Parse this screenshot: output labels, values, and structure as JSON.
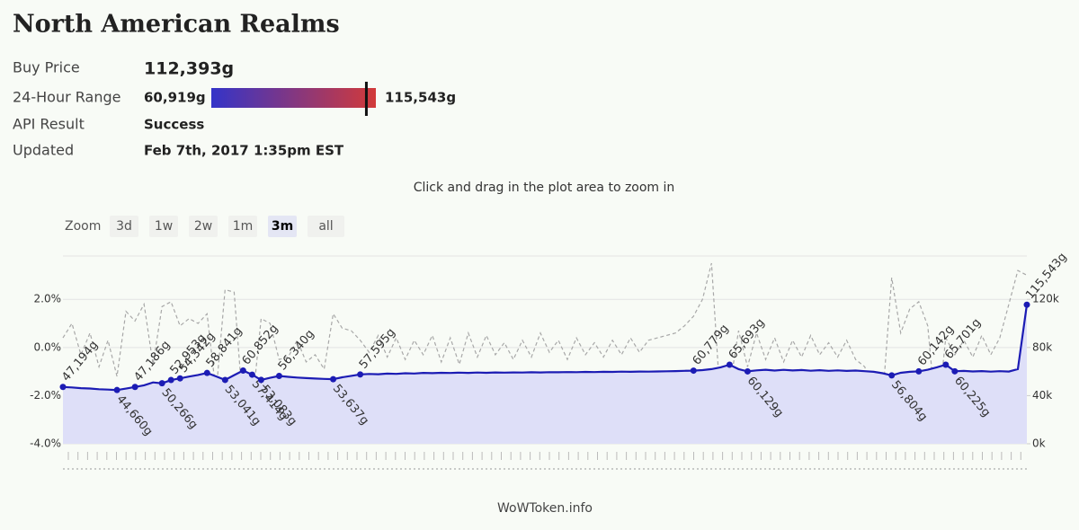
{
  "header": {
    "title": "North American Realms",
    "rows": [
      {
        "label": "Buy Price",
        "value": {
          "value": 112393,
          "label": "112,393g"
        }
      },
      {
        "label": "24-Hour Range",
        "low": {
          "value": 60919,
          "label": "60,919g"
        },
        "high": {
          "value": 115543,
          "label": "115,543g"
        }
      },
      {
        "label": "API Result",
        "text": "Success"
      },
      {
        "label": "Updated",
        "text": "Feb 7th, 2017 1:35pm EST"
      }
    ]
  },
  "zoom": {
    "label": "Zoom",
    "buttons": [
      "3d",
      "1w",
      "2w",
      "1m",
      "3m",
      "all"
    ],
    "selected": 4
  },
  "chart_data": {
    "type": "line",
    "subtitle": "Click and drag in the plot area to zoom in",
    "credits": "WoWToken.info",
    "ylim": [
      -4,
      3.8
    ],
    "yticks": [
      {
        "value": -4,
        "label": "-4.0%"
      },
      {
        "value": -2,
        "label": "-2.0%"
      },
      {
        "value": 0,
        "label": "0.0%"
      },
      {
        "value": 2,
        "label": "2.0%"
      }
    ],
    "y2lim": [
      0,
      156000
    ],
    "y2ticks": [
      {
        "value": 0,
        "label": "0k"
      },
      {
        "value": 40000,
        "label": "40k"
      },
      {
        "value": 80000,
        "label": "80k"
      },
      {
        "value": 120000,
        "label": "120k"
      }
    ],
    "grid": true,
    "series": [
      {
        "color": "#1c1cb4",
        "axis": "y2",
        "area_color": "#dedff8",
        "values": [
          47194,
          46800,
          46200,
          45900,
          45300,
          45000,
          44660,
          45800,
          47186,
          48600,
          51000,
          50266,
          52953,
          54342,
          55800,
          57200,
          58841,
          56000,
          53041,
          57000,
          60852,
          57414,
          53083,
          54800,
          56340,
          55600,
          55000,
          54600,
          54200,
          53900,
          53637,
          55200,
          56400,
          57595,
          58000,
          57800,
          58300,
          58100,
          58600,
          58400,
          58900,
          58700,
          59000,
          58800,
          59100,
          58900,
          59200,
          59000,
          59300,
          59100,
          59300,
          59200,
          59400,
          59300,
          59500,
          59400,
          59600,
          59500,
          59700,
          59600,
          59800,
          59700,
          59900,
          59800,
          60000,
          59900,
          60100,
          60200,
          60400,
          60600,
          60779,
          61200,
          62000,
          63500,
          65693,
          62000,
          60129,
          61000,
          61500,
          60800,
          61400,
          60900,
          61300,
          60700,
          61100,
          60600,
          61000,
          60500,
          60800,
          60300,
          59800,
          58600,
          56804,
          59000,
          59800,
          60142,
          61500,
          63500,
          65701,
          60225,
          60500,
          60100,
          60400,
          59900,
          60300,
          60000,
          62000,
          115543
        ],
        "value_labels": [
          "47,194g",
          null,
          null,
          null,
          null,
          null,
          "44,660g",
          null,
          "47,186g",
          null,
          null,
          "50,266g",
          "52,953g",
          "54,342g",
          null,
          null,
          "58,841g",
          null,
          "53,041g",
          null,
          "60,852g",
          "57,414g",
          "53,083g",
          null,
          "56,340g",
          null,
          null,
          null,
          null,
          null,
          "53,637g",
          null,
          null,
          "57,595g",
          null,
          null,
          null,
          null,
          null,
          null,
          null,
          null,
          null,
          null,
          null,
          null,
          null,
          null,
          null,
          null,
          null,
          null,
          null,
          null,
          null,
          null,
          null,
          null,
          null,
          null,
          null,
          null,
          null,
          null,
          null,
          null,
          null,
          null,
          null,
          null,
          "60,779g",
          null,
          null,
          null,
          "65,693g",
          null,
          "60,129g",
          null,
          null,
          null,
          null,
          null,
          null,
          null,
          null,
          null,
          null,
          null,
          null,
          null,
          null,
          null,
          "56,804g",
          null,
          null,
          "60,142g",
          null,
          null,
          "65,701g",
          "60,225g",
          null,
          null,
          null,
          null,
          null,
          null,
          null,
          "115,543g"
        ]
      },
      {
        "color": "#a8a8a8",
        "dashed": true,
        "values": [
          0.4,
          1.0,
          -0.3,
          0.6,
          -0.8,
          0.3,
          -1.2,
          1.5,
          1.1,
          1.8,
          -0.7,
          1.7,
          1.9,
          0.9,
          1.2,
          1.0,
          1.4,
          -1.9,
          2.4,
          2.3,
          -2.6,
          -2.5,
          1.2,
          1.0,
          -0.5,
          -0.4,
          0.3,
          -0.6,
          -0.3,
          -0.9,
          1.4,
          0.8,
          0.7,
          0.3,
          -0.2,
          0.5,
          -0.4,
          0.4,
          -0.5,
          0.3,
          -0.3,
          0.5,
          -0.6,
          0.4,
          -0.7,
          0.6,
          -0.4,
          0.5,
          -0.3,
          0.2,
          -0.5,
          0.3,
          -0.4,
          0.6,
          -0.2,
          0.3,
          -0.5,
          0.4,
          -0.3,
          0.2,
          -0.4,
          0.3,
          -0.3,
          0.4,
          -0.2,
          0.3,
          0.4,
          0.5,
          0.6,
          0.9,
          1.3,
          2.0,
          3.5,
          -2.4,
          -1.7,
          0.7,
          -0.8,
          0.6,
          -0.5,
          0.4,
          -0.6,
          0.3,
          -0.4,
          0.5,
          -0.3,
          0.2,
          -0.4,
          0.3,
          -0.5,
          -0.8,
          -1.9,
          -2.1,
          2.9,
          0.6,
          1.6,
          1.9,
          0.9,
          -3.2,
          0.4,
          -0.3,
          0.3,
          -0.4,
          0.5,
          -0.3,
          0.4,
          1.8,
          3.2,
          3.0
        ]
      }
    ]
  }
}
